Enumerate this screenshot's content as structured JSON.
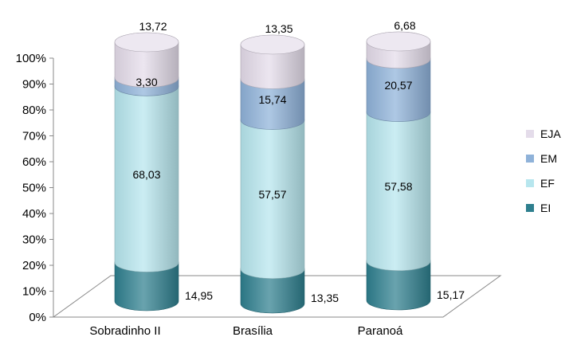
{
  "chart_data": {
    "type": "bar",
    "stacked": true,
    "percent_stacked": true,
    "style": "3d-cylinder",
    "categories": [
      "Sobradinho II",
      "Brasília",
      "Paranoá"
    ],
    "series": [
      {
        "name": "EI",
        "values": [
          14.95,
          13.35,
          15.17
        ],
        "labels": [
          "14,95",
          "13,35",
          "15,17"
        ],
        "color": "#2e7f8e"
      },
      {
        "name": "EF",
        "values": [
          68.03,
          57.57,
          57.58
        ],
        "labels": [
          "68,03",
          "57,57",
          "57,58"
        ],
        "color": "#b7e6ee"
      },
      {
        "name": "EM",
        "values": [
          3.3,
          15.74,
          20.57
        ],
        "labels": [
          "3,30",
          "15,74",
          "20,57"
        ],
        "color": "#8fb2d9"
      },
      {
        "name": "EJA",
        "values": [
          13.72,
          13.35,
          6.68
        ],
        "labels": [
          "13,72",
          "13,35",
          "6,68"
        ],
        "color": "#e4dcea"
      }
    ],
    "y_ticks": [
      "0%",
      "10%",
      "20%",
      "30%",
      "40%",
      "50%",
      "60%",
      "70%",
      "80%",
      "90%",
      "100%"
    ],
    "ylim": [
      0,
      100
    ],
    "legend_position": "right",
    "legend_order": [
      "EJA",
      "EM",
      "EF",
      "EI"
    ],
    "grid": false
  }
}
